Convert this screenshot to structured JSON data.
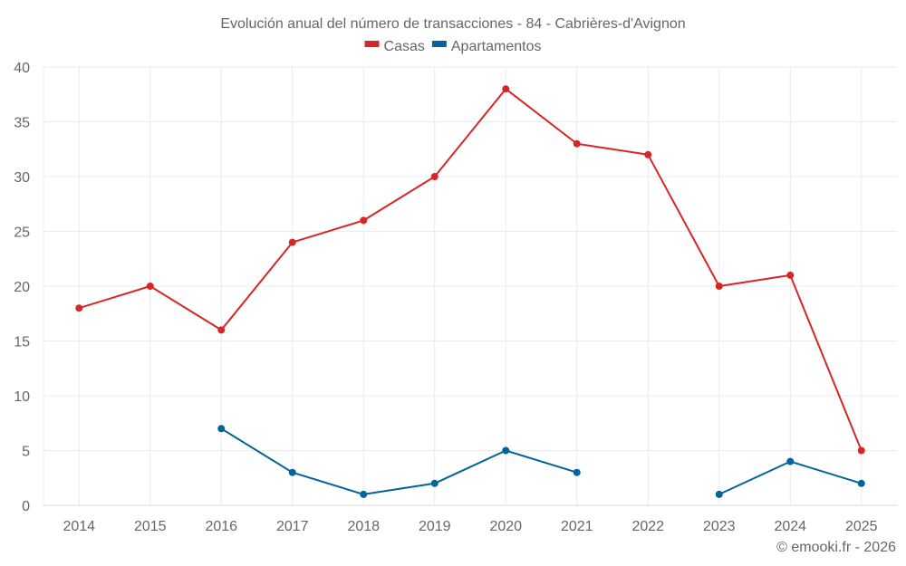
{
  "chart_data": {
    "type": "line",
    "title": "Evolución anual del número de transacciones - 84 - Cabrières-d'Avignon",
    "xlabel": "",
    "ylabel": "",
    "categories": [
      "2014",
      "2015",
      "2016",
      "2017",
      "2018",
      "2019",
      "2020",
      "2021",
      "2022",
      "2023",
      "2024",
      "2025"
    ],
    "ylim": [
      0,
      40
    ],
    "yticks": [
      0,
      5,
      10,
      15,
      20,
      25,
      30,
      35,
      40
    ],
    "grid": true,
    "legend_position": "top-center",
    "series": [
      {
        "name": "Casas",
        "color": "#d62728",
        "values": [
          18,
          20,
          16,
          24,
          26,
          30,
          38,
          33,
          32,
          20,
          21,
          5
        ]
      },
      {
        "name": "Apartamentos",
        "color": "#03649b",
        "values": [
          null,
          null,
          7,
          3,
          1,
          2,
          5,
          3,
          null,
          1,
          4,
          2
        ]
      }
    ],
    "credit": "© emooki.fr - 2026"
  }
}
